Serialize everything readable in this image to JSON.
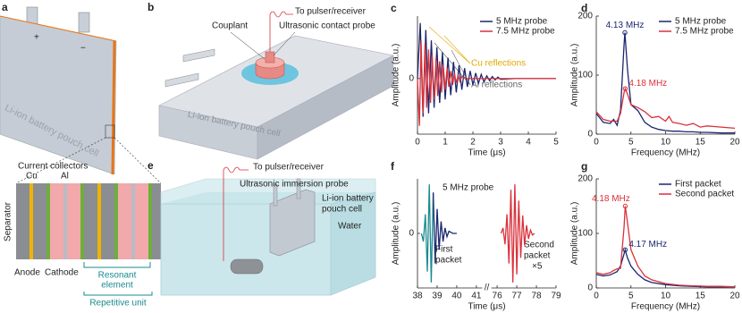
{
  "figure": {
    "a": {
      "label": "a",
      "cell": "Li-ion battery pouch cell",
      "plus": "+",
      "minus": "−",
      "collectors": "Current collectors",
      "cu": "Cu",
      "al": "Al",
      "separator": "Separator",
      "anode": "Anode",
      "cathode": "Cathode",
      "resonant": [
        "Resonant",
        "element"
      ],
      "unit": "Repetitive unit"
    },
    "b": {
      "label": "b",
      "couplant": "Couplant",
      "wire": "To pulser/receiver",
      "probe": "Ultrasonic contact probe",
      "cell": "Li-ion battery pouch cell"
    },
    "e": {
      "label": "e",
      "wire": "To pulser/receiver",
      "probe": "Ultrasonic immersion probe",
      "cell": [
        "Li-ion battery",
        "pouch cell"
      ],
      "water": "Water"
    }
  },
  "chart_data": [
    {
      "type": "line",
      "label": "c",
      "xlabel": "Time (μs)",
      "ylabel": "Amplitude (a.u.)",
      "xlim": [
        0,
        5
      ],
      "ylim": [
        -0.8,
        0.9
      ],
      "xticks": [
        0,
        1,
        2,
        3,
        4,
        5
      ],
      "yticks": [
        0
      ],
      "legend": "upper right",
      "notes": [
        "Cu reflections",
        "Al reflections"
      ],
      "series": [
        {
          "name": "5 MHz probe",
          "color": "#1b2770",
          "x": [
            0,
            0.1,
            0.2,
            0.3,
            0.4,
            0.5,
            0.6,
            0.7,
            0.8,
            0.9,
            1.0,
            1.1,
            1.2,
            1.3,
            1.4,
            1.5,
            1.6,
            1.7,
            1.8,
            1.9,
            2.0,
            2.1,
            2.2,
            2.3,
            2.4,
            2.5,
            2.6,
            2.7,
            2.8,
            2.9,
            3.0,
            3.5,
            4,
            4.5,
            5
          ],
          "values": [
            0,
            0.8,
            -0.55,
            0.7,
            -0.5,
            0.55,
            -0.42,
            0.45,
            -0.35,
            0.38,
            -0.3,
            0.3,
            -0.24,
            0.24,
            -0.2,
            0.19,
            -0.16,
            0.15,
            -0.12,
            0.11,
            -0.09,
            0.08,
            -0.07,
            0.06,
            -0.05,
            0.04,
            -0.03,
            0.03,
            -0.02,
            0.02,
            -0.01,
            0,
            0,
            0,
            0
          ]
        },
        {
          "name": "7.5 MHz probe",
          "color": "#d9313b",
          "x": [
            0,
            0.07,
            0.13,
            0.2,
            0.27,
            0.33,
            0.4,
            0.47,
            0.53,
            0.6,
            0.67,
            0.73,
            0.8,
            0.87,
            0.93,
            1.0,
            1.07,
            1.13,
            1.2,
            1.27,
            1.33,
            1.4,
            1.47,
            1.53,
            1.6,
            1.8,
            2.5,
            5
          ],
          "values": [
            0,
            -0.68,
            0.55,
            -0.5,
            0.5,
            -0.42,
            0.42,
            -0.35,
            0.35,
            -0.3,
            0.3,
            -0.25,
            0.25,
            -0.2,
            0.2,
            -0.16,
            0.15,
            -0.12,
            0.11,
            -0.09,
            0.08,
            -0.06,
            0.05,
            -0.04,
            0.03,
            0,
            0,
            0
          ]
        }
      ]
    },
    {
      "type": "line",
      "label": "d",
      "xlabel": "Frequency (MHz)",
      "ylabel": "Amplitude (a.u.)",
      "xlim": [
        0,
        20
      ],
      "ylim": [
        0,
        200
      ],
      "xticks": [
        0,
        5,
        10,
        15,
        20
      ],
      "yticks": [
        0,
        100,
        200
      ],
      "legend": "upper right",
      "annotations": [
        {
          "text": "4.13 MHz",
          "x": 4.13,
          "y": 172,
          "color": "#1b2770"
        },
        {
          "text": "4.18 MHz",
          "x": 4.18,
          "y": 77,
          "color": "#d9313b"
        }
      ],
      "series": [
        {
          "name": "5 MHz probe",
          "color": "#1b2770",
          "x": [
            0,
            1,
            2,
            2.5,
            3,
            3.5,
            4,
            4.13,
            4.5,
            5,
            6,
            7,
            8,
            9,
            10,
            11,
            12,
            13,
            14,
            15,
            16,
            18,
            20
          ],
          "values": [
            35,
            20,
            18,
            25,
            15,
            40,
            150,
            172,
            110,
            50,
            40,
            20,
            12,
            8,
            6,
            5,
            5,
            4,
            4,
            3,
            3,
            2,
            2
          ]
        },
        {
          "name": "7.5 MHz probe",
          "color": "#d9313b",
          "x": [
            0,
            1,
            2,
            3,
            3.5,
            4,
            4.18,
            4.5,
            5,
            6,
            7,
            8,
            9,
            10,
            10.5,
            11,
            12,
            13,
            14,
            15,
            16,
            18,
            20
          ],
          "values": [
            38,
            25,
            22,
            22,
            35,
            70,
            77,
            68,
            50,
            45,
            38,
            28,
            30,
            22,
            30,
            20,
            18,
            15,
            18,
            12,
            14,
            12,
            10
          ]
        }
      ]
    },
    {
      "type": "line",
      "label": "f",
      "xlabel": "Time (μs)",
      "ylabel": "Amplitude (a.u.)",
      "xsegments": [
        [
          38,
          41.3
        ],
        [
          75.7,
          79
        ]
      ],
      "ylim": [
        -1,
        1
      ],
      "xticks": [
        38,
        39,
        40,
        41,
        76,
        77,
        78,
        79
      ],
      "yticks": [
        0
      ],
      "notes": [
        "5 MHz probe",
        [
          "First",
          "packet"
        ],
        [
          "Second",
          "packet",
          "×5"
        ]
      ],
      "series": [
        {
          "color": "#1a8a8f",
          "x": [
            38.2,
            38.3,
            38.4,
            38.5,
            38.6,
            38.7,
            38.8
          ],
          "values": [
            0,
            -0.15,
            0.35,
            -0.7,
            0.9,
            -0.9,
            0.75
          ]
        },
        {
          "color": "#1b2770",
          "x": [
            38.8,
            38.9,
            39.0,
            39.1,
            39.2,
            39.3,
            39.4,
            39.5,
            39.6,
            39.8,
            40.0
          ],
          "values": [
            0.75,
            -0.55,
            0.45,
            -0.3,
            0.22,
            -0.15,
            0.1,
            -0.06,
            0.04,
            0,
            0
          ]
        },
        {
          "color": "#d9313b",
          "x": [
            76.2,
            76.3,
            76.4,
            76.5,
            76.6,
            76.7,
            76.8,
            76.9,
            77.0,
            77.1,
            77.2,
            77.3,
            77.4,
            77.5,
            77.6,
            77.7,
            77.8,
            77.9
          ],
          "values": [
            0,
            0.1,
            -0.2,
            0.35,
            -0.55,
            0.8,
            -0.9,
            0.9,
            -0.75,
            0.6,
            -0.45,
            0.33,
            -0.22,
            0.15,
            -0.1,
            0.06,
            -0.03,
            0
          ]
        }
      ]
    },
    {
      "type": "line",
      "label": "g",
      "xlabel": "Frequency (MHz)",
      "ylabel": "Amplitude (a.u.)",
      "xlim": [
        0,
        20
      ],
      "ylim": [
        0,
        200
      ],
      "xticks": [
        0,
        5,
        10,
        15,
        20
      ],
      "yticks": [
        0,
        100,
        200
      ],
      "legend": "upper right",
      "annotations": [
        {
          "text": "4.18 MHz",
          "x": 4.18,
          "y": 150,
          "color": "#d9313b"
        },
        {
          "text": "4.17 MHz",
          "x": 4.17,
          "y": 70,
          "color": "#1b2770"
        }
      ],
      "series": [
        {
          "name": "First packet",
          "color": "#1b2770",
          "x": [
            0,
            1,
            2,
            3,
            3.5,
            4,
            4.17,
            4.5,
            5,
            6,
            7,
            8,
            10,
            12,
            14,
            16,
            18,
            20
          ],
          "values": [
            25,
            22,
            24,
            30,
            40,
            62,
            70,
            55,
            40,
            25,
            15,
            10,
            6,
            4,
            3,
            2,
            2,
            2
          ]
        },
        {
          "name": "Second packet",
          "color": "#d9313b",
          "x": [
            0,
            1,
            2,
            2.5,
            3,
            3.5,
            4,
            4.18,
            4.5,
            5,
            6,
            7,
            8,
            10,
            12,
            14,
            16,
            18,
            20
          ],
          "values": [
            28,
            25,
            28,
            32,
            35,
            36,
            110,
            150,
            120,
            70,
            40,
            22,
            15,
            8,
            5,
            4,
            3,
            3,
            2
          ]
        }
      ]
    }
  ]
}
